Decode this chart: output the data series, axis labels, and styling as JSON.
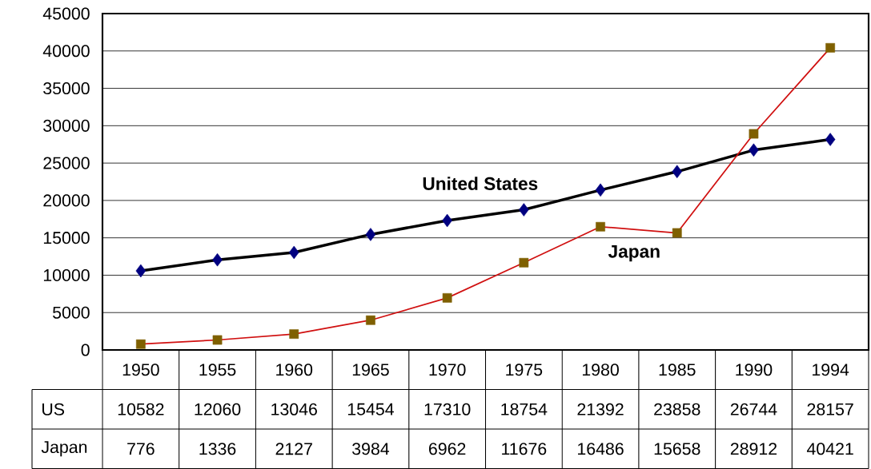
{
  "chart_data": {
    "type": "line",
    "categories": [
      "1950",
      "1955",
      "1960",
      "1965",
      "1970",
      "1975",
      "1980",
      "1985",
      "1990",
      "1994"
    ],
    "series": [
      {
        "name": "United States",
        "color": "#000000",
        "colors": [
          "#000080",
          "#000080",
          "#000080",
          "#000080",
          "#000080",
          "#000080",
          "#000080",
          "#000080",
          "#000080",
          "#000080"
        ],
        "marker": "diamond",
        "values": [
          10582,
          12060,
          13046,
          15454,
          17310,
          18754,
          21392,
          23858,
          26744,
          28157
        ]
      },
      {
        "name": "Japan",
        "color": "#d01010",
        "colors": [
          "#7f6000",
          "#7f6000",
          "#7f6000",
          "#7f6000",
          "#7f6000",
          "#7f6000",
          "#7f6000",
          "#7f6000",
          "#7f6000",
          "#7f6000"
        ],
        "marker": "square",
        "values": [
          776,
          1336,
          2127,
          3984,
          6962,
          11676,
          16486,
          15658,
          28912,
          40421
        ]
      }
    ],
    "annotations": [
      "US",
      "Japan"
    ],
    "data_labels": true,
    "ylim": [
      0,
      45000
    ],
    "yticks": [
      0,
      5000,
      10000,
      15000,
      20000,
      25000,
      30000,
      35000,
      40000,
      45000
    ],
    "grid": "y"
  }
}
